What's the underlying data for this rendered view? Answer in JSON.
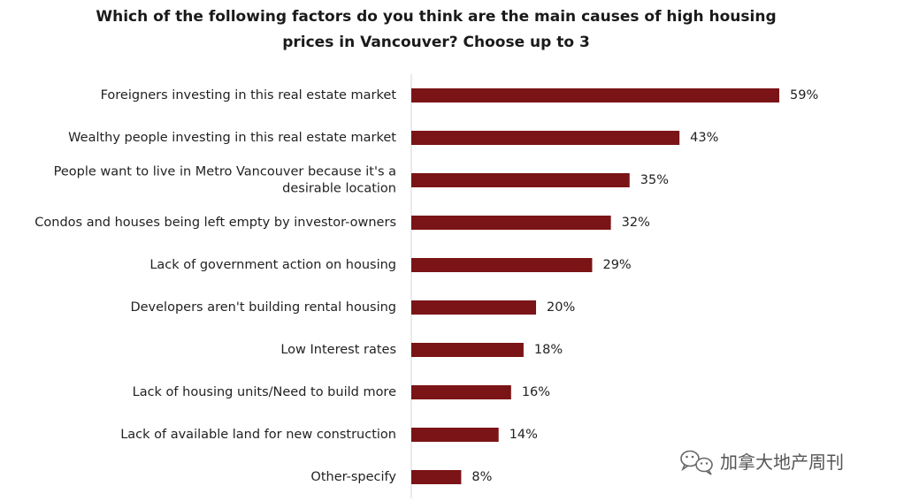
{
  "chart_data": {
    "type": "bar",
    "orientation": "horizontal",
    "title_lines": [
      "Which of the following factors do you think are the main causes of high housing",
      "prices in Vancouver? Choose up to 3"
    ],
    "categories": [
      [
        "Foreigners investing in this real estate market"
      ],
      [
        "Wealthy people investing in this real estate market"
      ],
      [
        "People want to live in Metro Vancouver because it's a",
        "desirable location"
      ],
      [
        "Condos and houses being left empty by investor-owners"
      ],
      [
        "Lack of government action on housing"
      ],
      [
        "Developers aren't building rental housing"
      ],
      [
        "Low Interest rates"
      ],
      [
        "Lack of housing units/Need to build more"
      ],
      [
        "Lack of available land for new construction"
      ],
      [
        "Other-specify"
      ]
    ],
    "values": [
      59,
      43,
      35,
      32,
      29,
      20,
      18,
      16,
      14,
      8
    ],
    "value_labels": [
      "59%",
      "43%",
      "35%",
      "32%",
      "29%",
      "20%",
      "18%",
      "16%",
      "14%",
      "8%"
    ],
    "unit": "%",
    "bar_color": "#7b1416",
    "grid": false,
    "legend": "none"
  },
  "watermark": {
    "text": "加拿大地产周刊",
    "icon": "wechat-icon"
  }
}
